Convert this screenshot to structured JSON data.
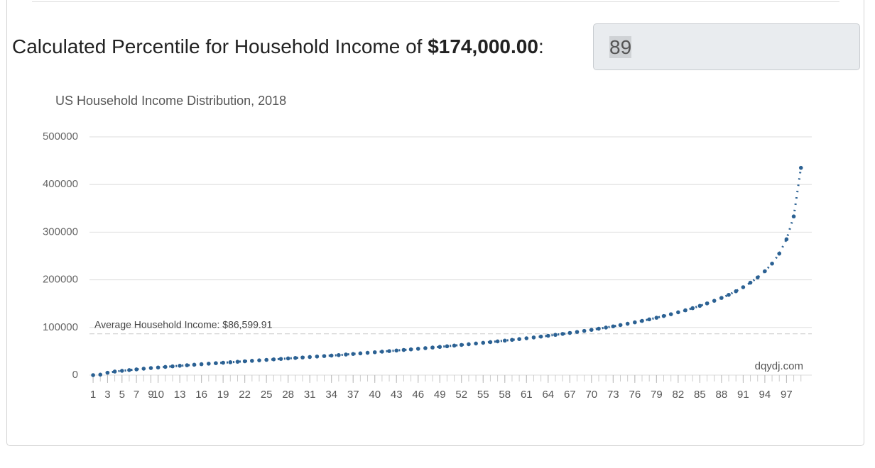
{
  "header": {
    "label": "Calculated Percentile for Household Income of",
    "amount": "$174,000.00",
    "colon": ":"
  },
  "input": {
    "value": 89
  },
  "chart_data": {
    "type": "line",
    "title": "US Household Income Distribution, 2018",
    "x": [
      1,
      2,
      3,
      4,
      5,
      6,
      7,
      8,
      9,
      10,
      11,
      12,
      13,
      14,
      15,
      16,
      17,
      18,
      19,
      20,
      21,
      22,
      23,
      24,
      25,
      26,
      27,
      28,
      29,
      30,
      31,
      32,
      33,
      34,
      35,
      36,
      37,
      38,
      39,
      40,
      41,
      42,
      43,
      44,
      45,
      46,
      47,
      48,
      49,
      50,
      51,
      52,
      53,
      54,
      55,
      56,
      57,
      58,
      59,
      60,
      61,
      62,
      63,
      64,
      65,
      66,
      67,
      68,
      69,
      70,
      71,
      72,
      73,
      74,
      75,
      76,
      77,
      78,
      79,
      80,
      81,
      82,
      83,
      84,
      85,
      86,
      87,
      88,
      89,
      90,
      91,
      92,
      93,
      94,
      95,
      96,
      97,
      98,
      99
    ],
    "values": [
      0,
      1000,
      5000,
      7500,
      9000,
      10500,
      12000,
      13500,
      14800,
      16000,
      17200,
      18400,
      19600,
      20700,
      21800,
      22900,
      24000,
      25000,
      26000,
      27000,
      28000,
      29000,
      30000,
      31000,
      32000,
      33000,
      34000,
      35000,
      36000,
      37000,
      38000,
      39000,
      40000,
      41000,
      42000,
      43200,
      44400,
      45600,
      46800,
      48000,
      49200,
      50400,
      51600,
      52800,
      54000,
      55300,
      56600,
      57900,
      59200,
      60500,
      62000,
      63400,
      64800,
      66300,
      67800,
      69300,
      70800,
      72400,
      74000,
      75600,
      77300,
      79000,
      80800,
      82600,
      84500,
      86500,
      88500,
      90600,
      92800,
      95000,
      97400,
      99800,
      102300,
      105000,
      107800,
      110700,
      113800,
      117000,
      120400,
      124000,
      127800,
      131800,
      136000,
      140500,
      145300,
      150500,
      156000,
      162000,
      168500,
      176000,
      184500,
      194000,
      205000,
      218000,
      234000,
      255000,
      285000,
      333000,
      435000
    ],
    "color": "#2b6193",
    "xlim": [
      0.5,
      100.5
    ],
    "xticks": [
      1,
      3,
      5,
      7,
      9,
      10,
      13,
      16,
      19,
      22,
      25,
      28,
      31,
      34,
      37,
      40,
      43,
      46,
      49,
      52,
      55,
      58,
      61,
      64,
      67,
      70,
      73,
      76,
      79,
      82,
      85,
      88,
      91,
      94,
      97
    ],
    "ylim": [
      0,
      500000
    ],
    "yticks": [
      0,
      100000,
      200000,
      300000,
      400000,
      500000
    ],
    "grid": true,
    "annotation": {
      "text": "Average Household Income: $86,599.91",
      "value": 86599.91
    },
    "watermark": "dqydj.com"
  }
}
